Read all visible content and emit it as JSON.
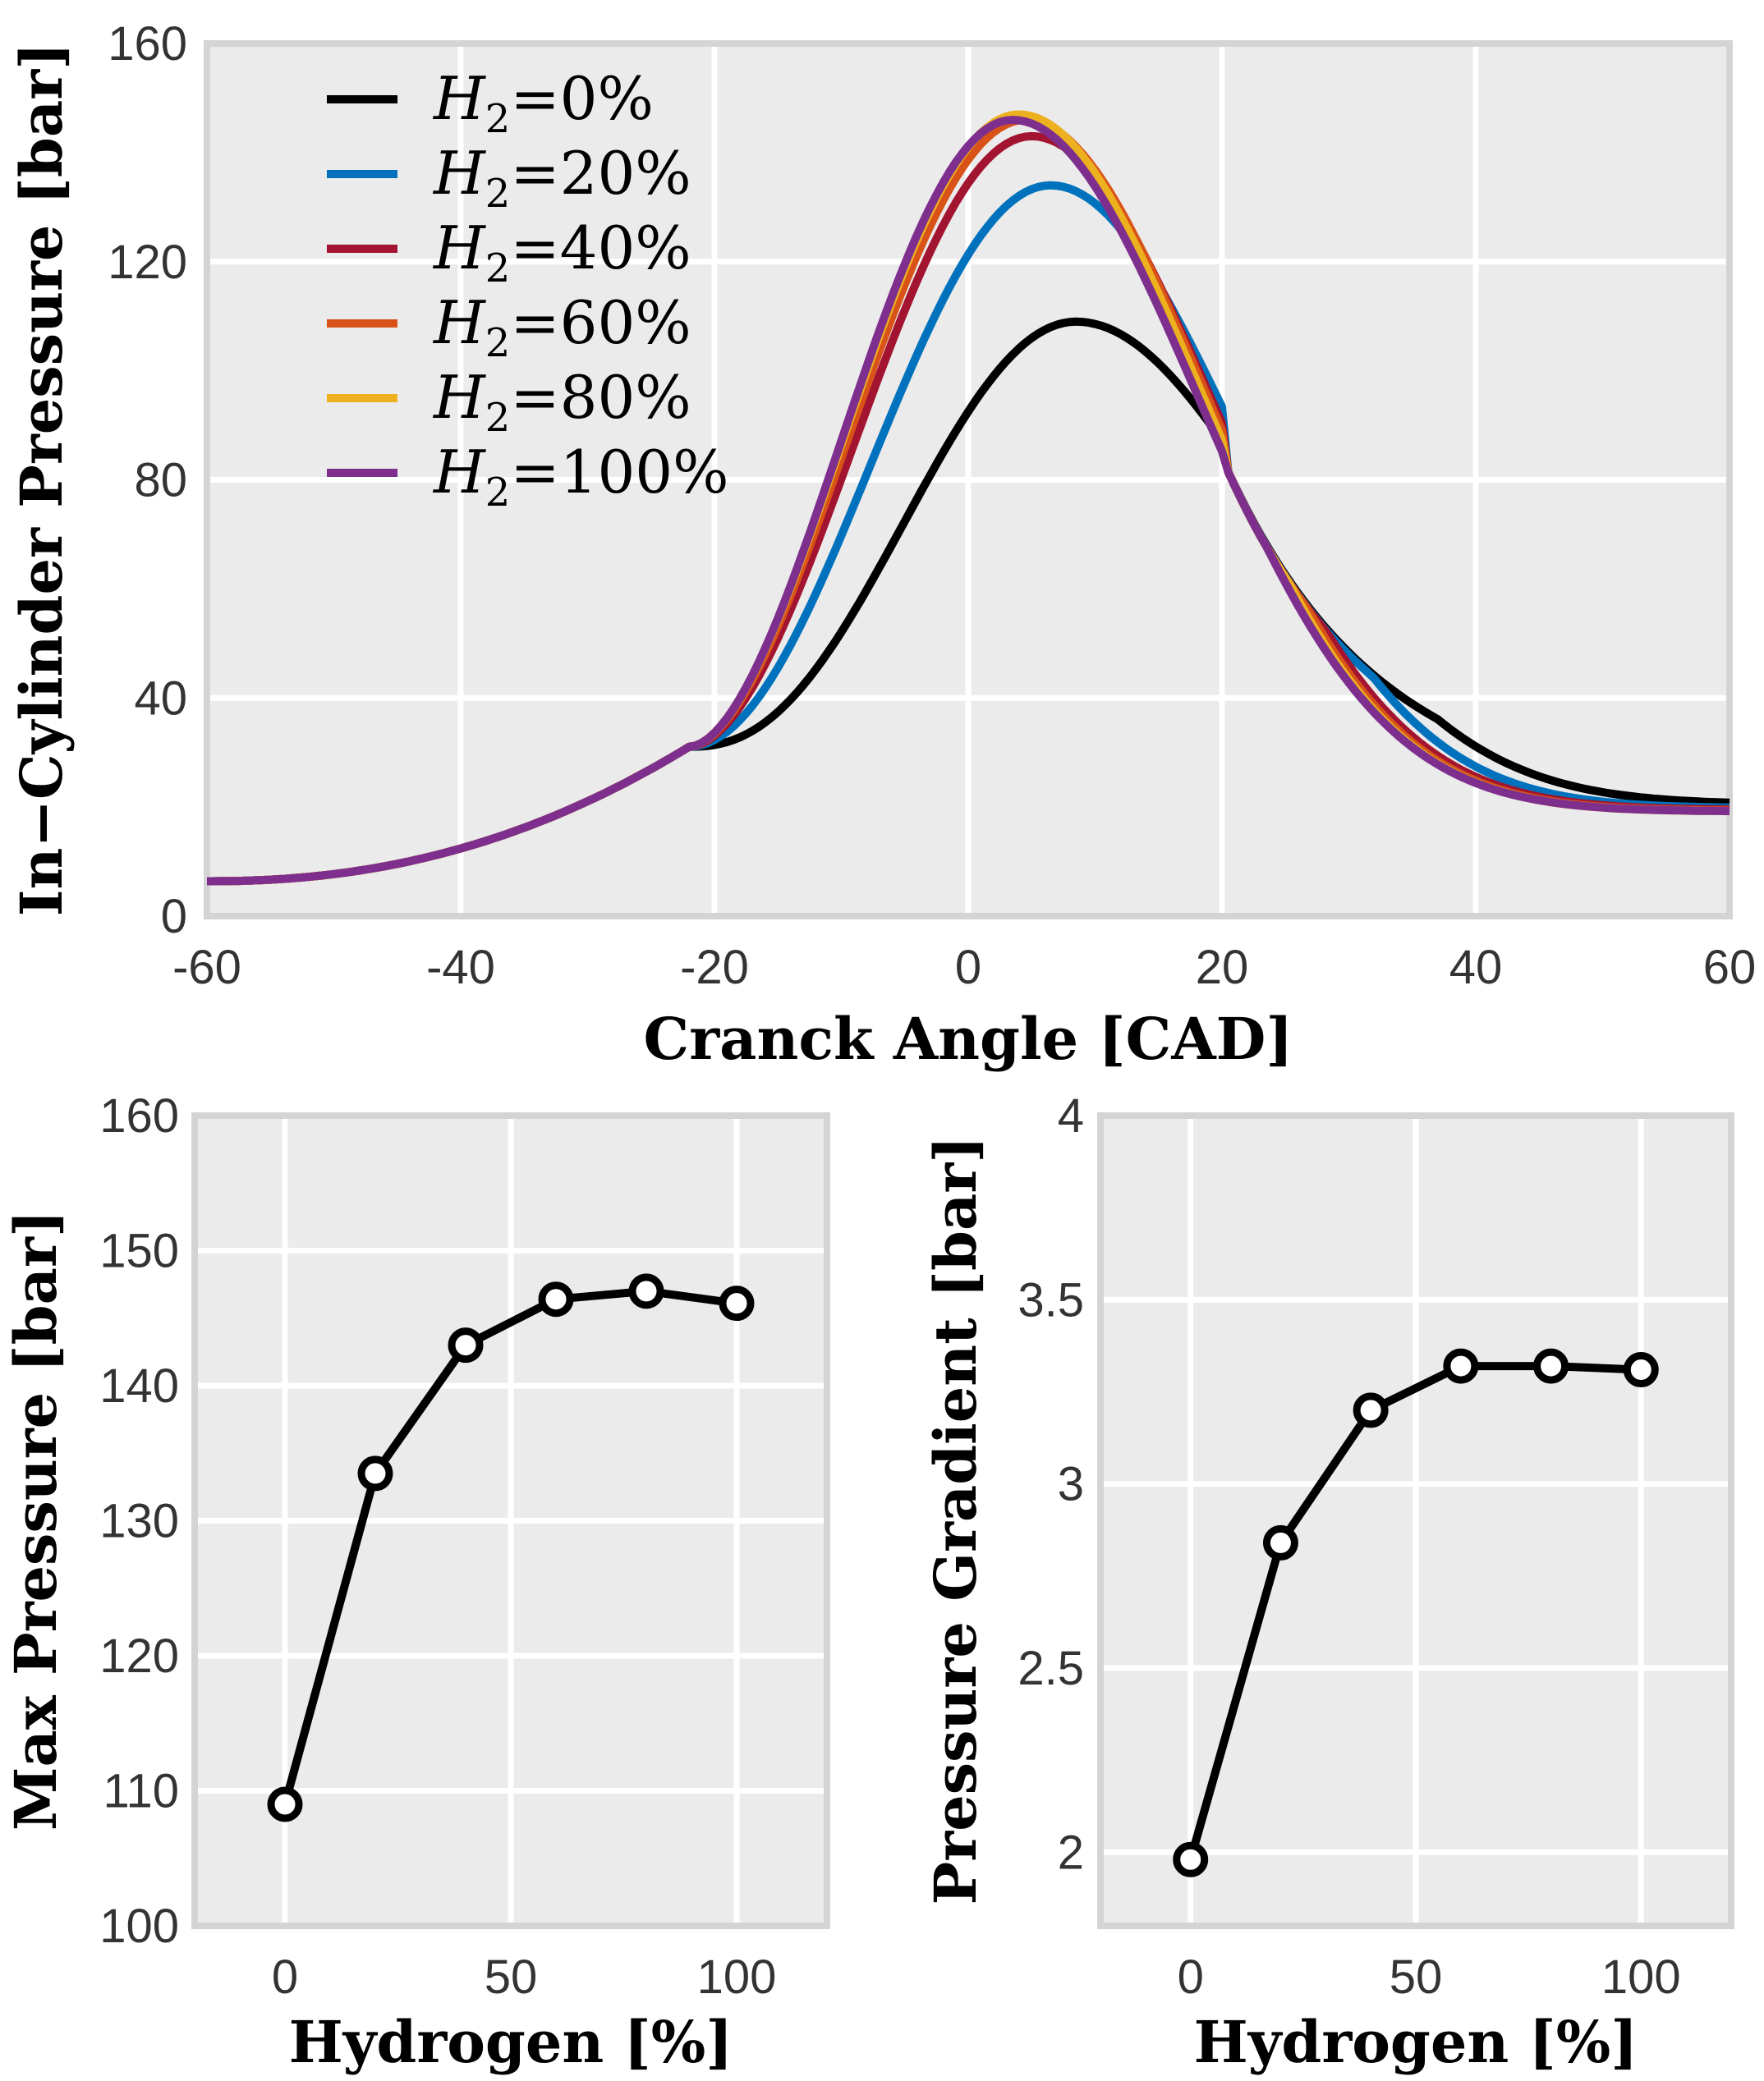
{
  "chart_data": [
    {
      "id": "top",
      "type": "line",
      "title": "",
      "xlabel": "Cranck Angle [CAD]",
      "ylabel": "In−Cylinder Pressure [bar]",
      "xlim": [
        -60,
        60
      ],
      "ylim": [
        0,
        160
      ],
      "xticks": [
        -60,
        -40,
        -20,
        0,
        20,
        40,
        60
      ],
      "xtick_labels": [
        "-60",
        "-40",
        "-20",
        "0",
        "20",
        "40",
        "60"
      ],
      "yticks": [
        0,
        40,
        80,
        120,
        160
      ],
      "ytick_labels": [
        "0",
        "40",
        "80",
        "120",
        "160"
      ],
      "grid": true,
      "legend_position": "top-left",
      "series": [
        {
          "name": "H2=0%",
          "legend_base": "H",
          "legend_sub": "2",
          "legend_rest": "=0%",
          "color": "#000000",
          "peak": 109,
          "peak_x": 8.5,
          "rise": 17,
          "fall": 24,
          "tail": 20.5
        },
        {
          "name": "H2=20%",
          "legend_base": "H",
          "legend_sub": "2",
          "legend_rest": "=20%",
          "color": "#0072bd",
          "peak": 134,
          "peak_x": 6.5,
          "rise": 13.5,
          "fall": 21,
          "tail": 19.8
        },
        {
          "name": "H2=40%",
          "legend_base": "H",
          "legend_sub": "2",
          "legend_rest": "=40%",
          "color": "#a2142f",
          "peak": 143,
          "peak_x": 5,
          "rise": 11.5,
          "fall": 20,
          "tail": 19.5
        },
        {
          "name": "H2=60%",
          "legend_base": "H",
          "legend_sub": "2",
          "legend_rest": "=60%",
          "color": "#d95319",
          "peak": 146,
          "peak_x": 4.5,
          "rise": 11,
          "fall": 19.5,
          "tail": 19.3
        },
        {
          "name": "H2=80%",
          "legend_base": "H",
          "legend_sub": "2",
          "legend_rest": "=80%",
          "color": "#edb120",
          "peak": 147,
          "peak_x": 4,
          "rise": 10.5,
          "fall": 19.5,
          "tail": 19.2
        },
        {
          "name": "H2=100%",
          "legend_base": "H",
          "legend_sub": "2",
          "legend_rest": "=100%",
          "color": "#7e2f8e",
          "peak": 146,
          "peak_x": 3.5,
          "rise": 10.5,
          "fall": 19.5,
          "tail": 19.2
        }
      ]
    },
    {
      "id": "bottom-left",
      "type": "line",
      "xlabel": "Hydrogen [%]",
      "ylabel": "Max Pressure [bar]",
      "xlim": [
        -20,
        120
      ],
      "ylim": [
        100,
        160
      ],
      "xticks": [
        0,
        50,
        100
      ],
      "xtick_labels": [
        "0",
        "50",
        "100"
      ],
      "yticks": [
        100,
        110,
        120,
        130,
        140,
        150,
        160
      ],
      "ytick_labels": [
        "100",
        "110",
        "120",
        "130",
        "140",
        "150",
        "160"
      ],
      "grid": true,
      "x": [
        0,
        20,
        40,
        60,
        80,
        100
      ],
      "y": [
        109,
        133.5,
        143,
        146.4,
        147,
        146.1
      ],
      "color": "#000000",
      "marker": "open-circle"
    },
    {
      "id": "bottom-right",
      "type": "line",
      "xlabel": "Hydrogen [%]",
      "ylabel": "Pressure Gradient [bar]",
      "xlim": [
        -20,
        120
      ],
      "ylim": [
        1.8,
        4
      ],
      "xticks": [
        0,
        50,
        100
      ],
      "xtick_labels": [
        "0",
        "50",
        "100"
      ],
      "yticks": [
        2,
        2.5,
        3,
        3.5,
        4
      ],
      "ytick_labels": [
        "2",
        "2.5",
        "3",
        "3.5",
        "4"
      ],
      "grid": true,
      "x": [
        0,
        20,
        40,
        60,
        80,
        100
      ],
      "y": [
        1.98,
        2.84,
        3.2,
        3.32,
        3.32,
        3.31
      ],
      "color": "#000000",
      "marker": "open-circle"
    }
  ]
}
